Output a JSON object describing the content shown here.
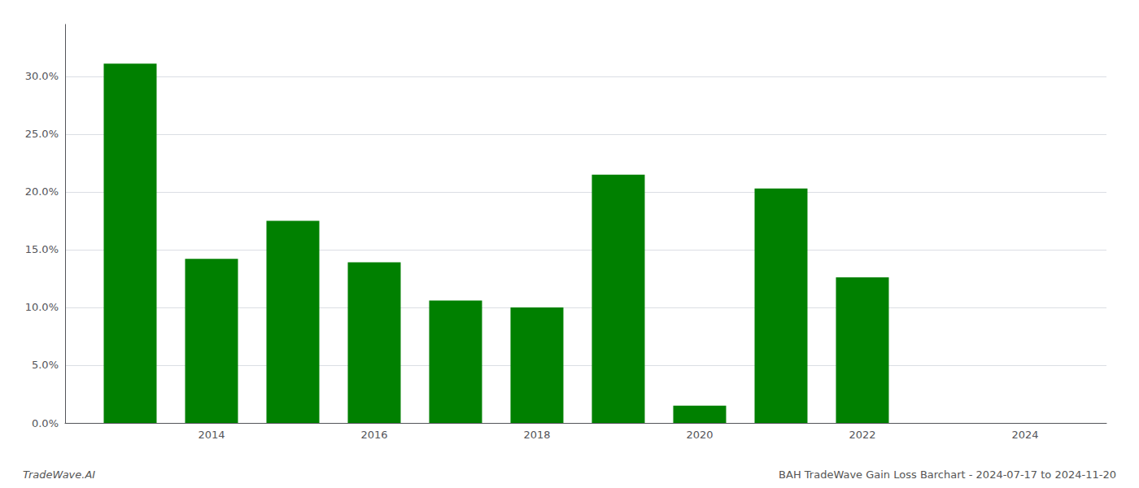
{
  "chart_data": {
    "type": "bar",
    "x": [
      2013,
      2014,
      2015,
      2016,
      2017,
      2018,
      2019,
      2020,
      2021,
      2022,
      2023
    ],
    "values": [
      0.311,
      0.142,
      0.175,
      0.139,
      0.106,
      0.1,
      0.215,
      0.015,
      0.203,
      0.126,
      0.0
    ],
    "color": "#008000",
    "xlim": [
      2012.2,
      2025.0
    ],
    "xticks": [
      2014,
      2016,
      2018,
      2020,
      2022,
      2024
    ],
    "ylim": [
      0,
      0.345
    ],
    "yticks": [
      {
        "value": 0.0,
        "label": "0.0%"
      },
      {
        "value": 0.05,
        "label": "5.0%"
      },
      {
        "value": 0.1,
        "label": "10.0%"
      },
      {
        "value": 0.15,
        "label": "15.0%"
      },
      {
        "value": 0.2,
        "label": "20.0%"
      },
      {
        "value": 0.25,
        "label": "25.0%"
      },
      {
        "value": 0.3,
        "label": "30.0%"
      }
    ],
    "grid": true,
    "annotations": [
      "TradeWave.AI",
      "BAH TradeWave Gain Loss Barchart - 2024-07-17 to 2024-11-20"
    ]
  }
}
